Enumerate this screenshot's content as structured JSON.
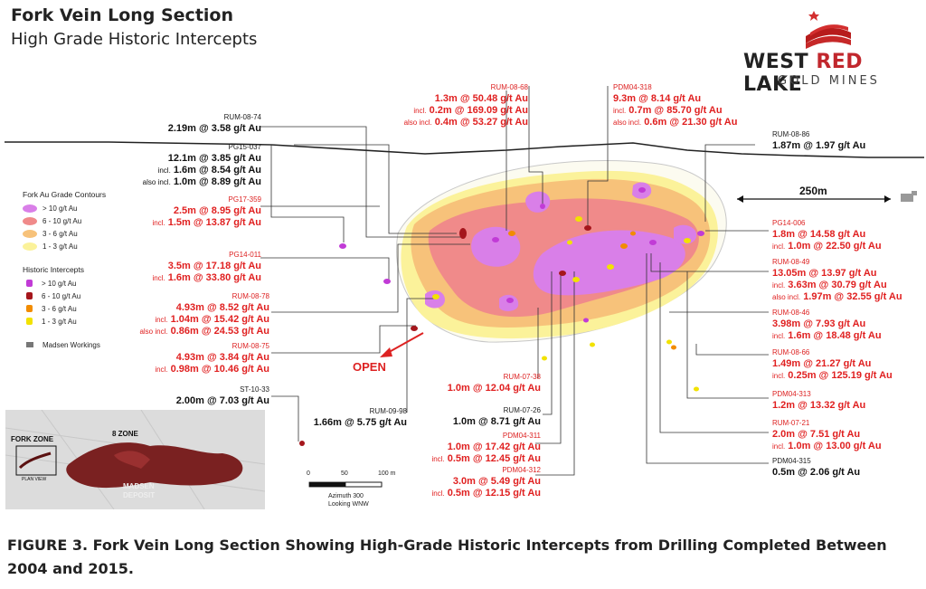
{
  "header": {
    "title": "Fork Vein Long Section",
    "subtitle": "High Grade Historic Intercepts"
  },
  "logo": {
    "word1": "WEST",
    "word2": "RED",
    "word3": "LAKE",
    "tagline": "GOLD MINES"
  },
  "legend": {
    "contours_title": "Fork Au Grade Contours",
    "contours": [
      {
        "label": "> 10 g/t Au",
        "color": "#d97fe8"
      },
      {
        "label": "6 - 10 g/t Au",
        "color": "#f08a8a"
      },
      {
        "label": "3 - 6 g/t Au",
        "color": "#f7c27a"
      },
      {
        "label": "1 - 3 g/t Au",
        "color": "#fbf29a"
      }
    ],
    "intercepts_title": "Historic Intercepts",
    "intercepts": [
      {
        "label": "> 10 g/t Au",
        "color": "#c13bd6"
      },
      {
        "label": "6 - 10 g/t Au",
        "color": "#a5161c"
      },
      {
        "label": "3 - 6 g/t Au",
        "color": "#f28c00"
      },
      {
        "label": "1 - 3 g/t Au",
        "color": "#f2e200"
      }
    ],
    "workings_label": "Madsen Workings"
  },
  "labels": {
    "rum0874": {
      "id": "RUM-08-74",
      "l1": "2.19m @ 3.58 g/t Au"
    },
    "pg15037": {
      "id": "PG15-037",
      "l1": "12.1m @ 3.85 g/t Au",
      "l2p": "incl.",
      "l2": "1.6m @ 8.54 g/t Au",
      "l3p": "also incl.",
      "l3": "1.0m @ 8.89 g/t Au"
    },
    "pg17359": {
      "id": "PG17-359",
      "l1": "2.5m @ 8.95 g/t Au",
      "l2p": "incl.",
      "l2": "1.5m @ 13.87 g/t Au"
    },
    "pg14011": {
      "id": "PG14-011",
      "l1": "3.5m @ 17.18 g/t Au",
      "l2p": "incl.",
      "l2": "1.6m @ 33.80 g/t Au"
    },
    "rum0878": {
      "id": "RUM-08-78",
      "l1": "4.93m @ 8.52 g/t Au",
      "l2p": "incl.",
      "l2": "1.04m @ 15.42 g/t Au",
      "l3p": "also incl.",
      "l3": "0.86m @ 24.53 g/t Au"
    },
    "rum0875": {
      "id": "RUM-08-75",
      "l1": "4.93m @ 3.84 g/t Au",
      "l2p": "incl.",
      "l2": "0.98m @ 10.46 g/t Au"
    },
    "st1033": {
      "id": "ST-10-33",
      "l1": "2.00m @ 7.03 g/t Au"
    },
    "rum0998": {
      "id": "RUM-09-98",
      "l1": "1.66m @ 5.75 g/t Au"
    },
    "rum0868": {
      "id": "RUM-08-68",
      "l1": "1.3m @ 50.48 g/t Au",
      "l2p": "incl.",
      "l2": "0.2m @ 169.09 g/t Au",
      "l3p": "also incl.",
      "l3": "0.4m @ 53.27 g/t Au"
    },
    "pdm04318": {
      "id": "PDM04-318",
      "l1": "9.3m @ 8.14 g/t Au",
      "l2p": "incl.",
      "l2": "0.7m @ 85.70 g/t Au",
      "l3p": "also incl.",
      "l3": "0.6m @ 21.30 g/t Au"
    },
    "rum0886": {
      "id": "RUM-08-86",
      "l1": "1.87m @ 1.97 g/t Au"
    },
    "pg14006": {
      "id": "PG14-006",
      "l1": "1.8m @ 14.58 g/t Au",
      "l2p": "incl.",
      "l2": "1.0m @ 22.50 g/t Au"
    },
    "rum0849": {
      "id": "RUM-08-49",
      "l1": "13.05m @ 13.97 g/t Au",
      "l2p": "incl.",
      "l2": "3.63m @ 30.79 g/t Au",
      "l3p": "also incl.",
      "l3": "1.97m @ 32.55 g/t Au"
    },
    "rum0846": {
      "id": "RUM-08-46",
      "l1": "3.98m @ 7.93 g/t Au",
      "l2p": "incl.",
      "l2": "1.6m @ 18.48 g/t Au"
    },
    "rum0866": {
      "id": "RUM-08-66",
      "l1": "1.49m @ 21.27 g/t Au",
      "l2p": "incl.",
      "l2": "0.25m @ 125.19 g/t Au"
    },
    "pdm04313": {
      "id": "PDM04-313",
      "l1": "1.2m @ 13.32 g/t Au"
    },
    "rum0721": {
      "id": "RUM-07-21",
      "l1": "2.0m @ 7.51 g/t Au",
      "l2p": "incl.",
      "l2": "1.0m @ 13.00 g/t Au"
    },
    "pdm04315": {
      "id": "PDM04-315",
      "l1": "0.5m @ 2.06 g/t Au"
    },
    "rum0738": {
      "id": "RUM-07-38",
      "l1": "1.0m @ 12.04 g/t Au"
    },
    "rum0726": {
      "id": "RUM-07-26",
      "l1": "1.0m @ 8.71 g/t Au"
    },
    "pdm04311": {
      "id": "PDM04-311",
      "l1": "1.0m @ 17.42 g/t Au",
      "l2p": "incl.",
      "l2": "0.5m @ 12.45 g/t Au"
    },
    "pdm04312": {
      "id": "PDM04-312",
      "l1": "3.0m @ 5.49 g/t Au",
      "l2p": "incl.",
      "l2": "0.5m @ 12.15 g/t Au"
    }
  },
  "open_label": "OPEN",
  "scale_250": "250m",
  "scalebar": {
    "t0": "0",
    "t1": "50",
    "t2": "100 m",
    "note1": "Azimuth 300",
    "note2": "Looking WNW"
  },
  "inset": {
    "fork": "FORK ZONE",
    "zone8": "8 ZONE",
    "madsen1": "MADSEN",
    "madsen2": "DEPOSIT",
    "plan": "PLAN VIEW"
  },
  "caption": "FIGURE 3. Fork Vein Long Section Showing High-Grade Historic Intercepts from Drilling Completed Between 2004 and 2015."
}
